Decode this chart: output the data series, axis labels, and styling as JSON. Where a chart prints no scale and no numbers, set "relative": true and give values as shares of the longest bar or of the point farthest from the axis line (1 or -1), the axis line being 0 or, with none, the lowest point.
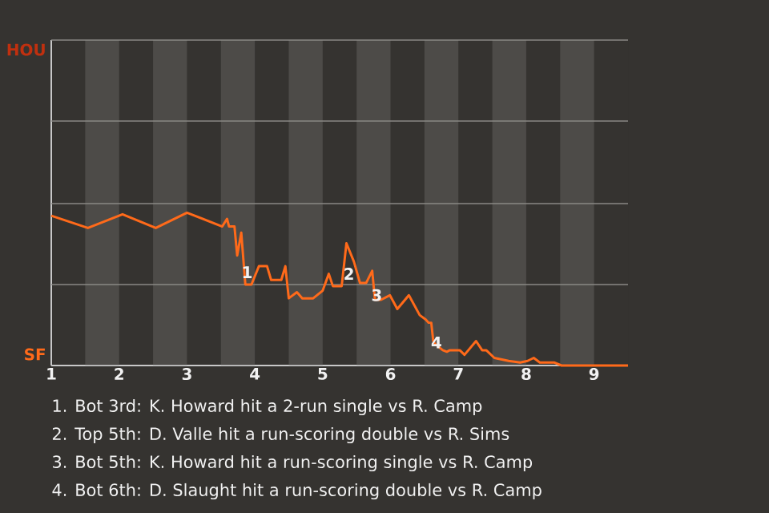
{
  "chart_data": {
    "type": "line",
    "relative": true,
    "xlim": [
      1,
      9.5
    ],
    "xticks": [
      1,
      2,
      3,
      4,
      5,
      6,
      7,
      8,
      9
    ],
    "marker": "none",
    "line_style": "solid",
    "series": [
      {
        "color": "#ff6a1a",
        "x": [
          1,
          1.54,
          2.05,
          2.54,
          3.0,
          3.52,
          3.59,
          3.62,
          3.7,
          3.74,
          3.8,
          3.86,
          3.95,
          4.06,
          4.18,
          4.24,
          4.39,
          4.45,
          4.5,
          4.62,
          4.7,
          4.86,
          5.0,
          5.09,
          5.15,
          5.28,
          5.35,
          5.46,
          5.55,
          5.64,
          5.73,
          5.77,
          5.86,
          5.99,
          6.1,
          6.27,
          6.43,
          6.52,
          6.56,
          6.6,
          6.63,
          6.66,
          6.77,
          6.83,
          6.87,
          7.02,
          7.09,
          7.26,
          7.35,
          7.41,
          7.53,
          7.74,
          7.91,
          8.02,
          8.11,
          8.2,
          8.41,
          8.52,
          9.0,
          9.5
        ],
        "values": [
          0.98,
          0.9,
          0.99,
          0.9,
          1,
          0.91,
          0.96,
          0.91,
          0.91,
          0.72,
          0.87,
          0.53,
          0.53,
          0.65,
          0.65,
          0.56,
          0.56,
          0.65,
          0.44,
          0.48,
          0.44,
          0.44,
          0.49,
          0.6,
          0.52,
          0.52,
          0.8,
          0.68,
          0.54,
          0.54,
          0.62,
          0.43,
          0.43,
          0.46,
          0.37,
          0.46,
          0.33,
          0.3,
          0.28,
          0.28,
          0.16,
          0.14,
          0.1,
          0.09,
          0.1,
          0.1,
          0.07,
          0.16,
          0.1,
          0.1,
          0.05,
          0.03,
          0.02,
          0.03,
          0.05,
          0.02,
          0.02,
          0,
          0,
          0
        ]
      }
    ],
    "bands": [
      {
        "axis": "x",
        "from": 1.5,
        "to": 2,
        "color": "#4d4b48"
      },
      {
        "axis": "x",
        "from": 2.5,
        "to": 3,
        "color": "#4d4b48"
      },
      {
        "axis": "x",
        "from": 3.5,
        "to": 4,
        "color": "#4d4b48"
      },
      {
        "axis": "x",
        "from": 4.5,
        "to": 5,
        "color": "#4d4b48"
      },
      {
        "axis": "x",
        "from": 5.5,
        "to": 6,
        "color": "#4d4b48"
      },
      {
        "axis": "x",
        "from": 6.5,
        "to": 7,
        "color": "#4d4b48"
      },
      {
        "axis": "x",
        "from": 7.5,
        "to": 8,
        "color": "#4d4b48"
      },
      {
        "axis": "x",
        "from": 8.5,
        "to": 9,
        "color": "#4d4b48"
      }
    ],
    "ref_lines": [
      {
        "axis": "y",
        "value": 0,
        "label": "SF",
        "color": "#c8c8c8"
      },
      {
        "axis": "y",
        "value": 0.53,
        "color": "#8a8885"
      },
      {
        "axis": "y",
        "value": 1.06,
        "color": "#8a8885"
      },
      {
        "axis": "y",
        "value": 1.6,
        "color": "#8a8885"
      },
      {
        "axis": "y",
        "value": 2.13,
        "label": "HOU",
        "color": "#8a8885"
      }
    ],
    "annotations": [
      {
        "text": "1",
        "x": 3.91,
        "y": 0.6
      },
      {
        "text": "2",
        "x": 5.41,
        "y": 0.59
      },
      {
        "text": "3",
        "x": 5.82,
        "y": 0.45
      },
      {
        "text": "4",
        "x": 6.7,
        "y": 0.14
      },
      "1. Bot 3rd: K. Howard hit a 2-run single vs R. Camp",
      "2. Top 5th: D. Valle hit a run-scoring double vs R. Sims",
      "3. Bot 5th: K. Howard hit a run-scoring single vs R. Camp",
      "4. Bot 6th: D. Slaught hit a run-scoring double vs R. Camp"
    ]
  }
}
